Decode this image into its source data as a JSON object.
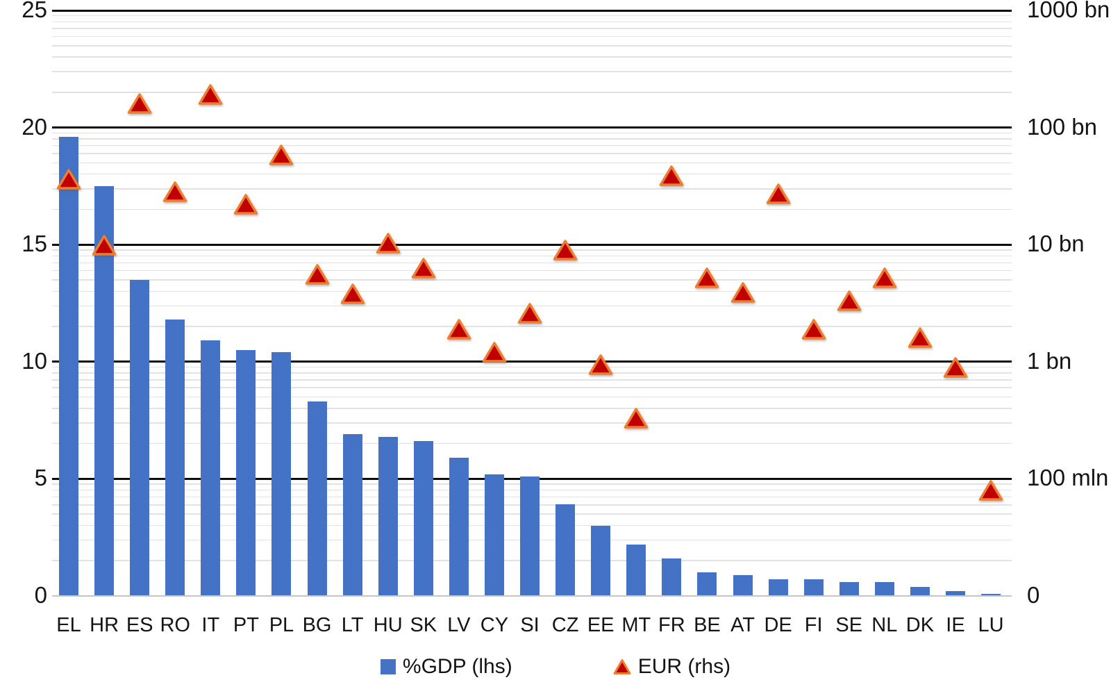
{
  "chart_data": {
    "type": "combo",
    "title": "",
    "categories": [
      "EL",
      "HR",
      "ES",
      "RO",
      "IT",
      "PT",
      "PL",
      "BG",
      "LT",
      "HU",
      "SK",
      "LV",
      "CY",
      "SI",
      "CZ",
      "EE",
      "MT",
      "FR",
      "BE",
      "AT",
      "DE",
      "FI",
      "SE",
      "NL",
      "DK",
      "IE",
      "LU"
    ],
    "series": [
      {
        "name": "%GDP (lhs)",
        "type": "bar",
        "axis": "left",
        "color": "#4472C4",
        "values": [
          19.6,
          17.5,
          13.5,
          11.8,
          10.9,
          10.5,
          10.4,
          8.3,
          6.9,
          6.8,
          6.6,
          5.9,
          5.2,
          5.1,
          3.9,
          3.0,
          2.2,
          1.6,
          1.0,
          0.9,
          0.7,
          0.7,
          0.6,
          0.6,
          0.4,
          0.2,
          0.1
        ]
      },
      {
        "name": "EUR (rhs)",
        "type": "scatter",
        "marker": "triangle",
        "axis": "right",
        "fill_color": "#C00000",
        "stroke_color": "#ED7D31",
        "values_eur_mln": [
          36000,
          9900,
          160000,
          28500,
          191500,
          22000,
          58500,
          5600,
          3800,
          10300,
          6300,
          1900,
          1200,
          2600,
          9000,
          950,
          330,
          39000,
          5200,
          3900,
          27000,
          1900,
          3300,
          5200,
          1600,
          900,
          80
        ]
      }
    ],
    "left_axis": {
      "scale": "linear",
      "min": 0,
      "max": 25,
      "tick_labels": [
        "25",
        "20",
        "15",
        "10",
        "5",
        "0"
      ]
    },
    "right_axis": {
      "scale": "log",
      "decades": 5,
      "top_value_mln": 1000000,
      "bottom_label_value_mln": 10,
      "tick_labels": [
        "1000 bn",
        "100 bn",
        "10 bn",
        "1 bn",
        "100 mln",
        "0"
      ],
      "minor_gridlines": true
    },
    "grid": {
      "major_color": "#0d0d0d",
      "minor_color": "#e2e2e2",
      "baseline_color": "#c6c6c6"
    },
    "legend": {
      "position": "bottom-center",
      "items": [
        {
          "marker": "square",
          "color": "#4472C4",
          "label": "%GDP (lhs)"
        },
        {
          "marker": "triangle",
          "fill": "#C00000",
          "stroke": "#ED7D31",
          "label": "EUR (rhs)"
        }
      ]
    }
  }
}
